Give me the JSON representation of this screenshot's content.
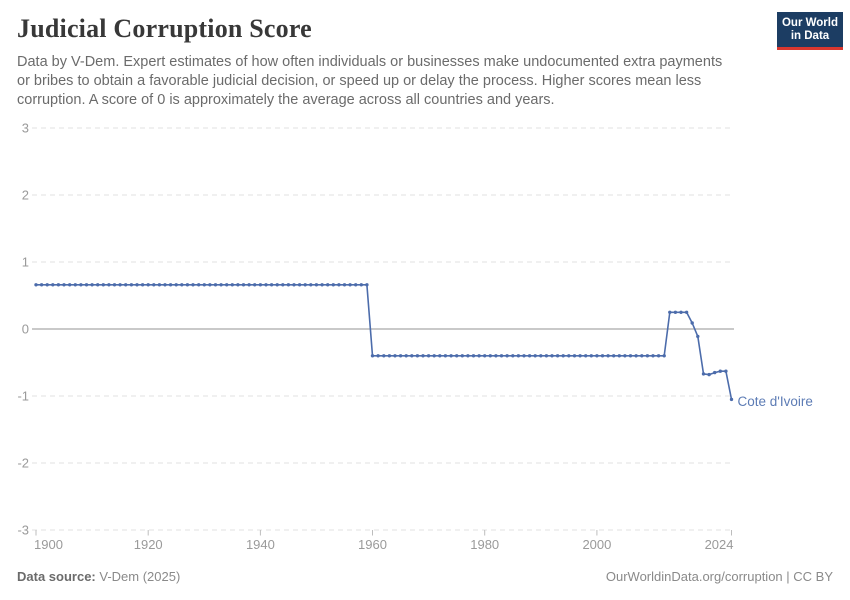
{
  "header": {
    "title": "Judicial Corruption Score",
    "subtitle_lines": [
      "Data by V-Dem. Expert estimates of how often individuals or businesses make undocumented extra payments",
      "or bribes to obtain a favorable judicial decision, or speed up or delay the process. Higher scores mean less",
      "corruption. A score of 0 is approximately the average across all countries and years."
    ]
  },
  "logo": {
    "line1": "Our World",
    "line2": "in Data",
    "bg_color": "#1c3d63",
    "accent_color": "#d9372f"
  },
  "chart_data": {
    "type": "line",
    "title": "Judicial Corruption Score",
    "xlabel": "",
    "ylabel": "",
    "xlim": [
      1900,
      2024
    ],
    "ylim": [
      -3,
      3
    ],
    "x_ticks": [
      1900,
      1920,
      1940,
      1960,
      1980,
      2000,
      2024
    ],
    "y_ticks": [
      3,
      2,
      1,
      0,
      -1,
      -2,
      -3
    ],
    "grid": "horizontal dashed gridlines, solid gray zero line",
    "legend": "inline entity label at line end",
    "series": [
      {
        "name": "Cote d'Ivoire",
        "color": "#4c6cab",
        "label_color": "#5d7cb5",
        "points": [
          [
            1900,
            0.66
          ],
          [
            1901,
            0.66
          ],
          [
            1902,
            0.66
          ],
          [
            1903,
            0.66
          ],
          [
            1904,
            0.66
          ],
          [
            1905,
            0.66
          ],
          [
            1906,
            0.66
          ],
          [
            1907,
            0.66
          ],
          [
            1908,
            0.66
          ],
          [
            1909,
            0.66
          ],
          [
            1910,
            0.66
          ],
          [
            1911,
            0.66
          ],
          [
            1912,
            0.66
          ],
          [
            1913,
            0.66
          ],
          [
            1914,
            0.66
          ],
          [
            1915,
            0.66
          ],
          [
            1916,
            0.66
          ],
          [
            1917,
            0.66
          ],
          [
            1918,
            0.66
          ],
          [
            1919,
            0.66
          ],
          [
            1920,
            0.66
          ],
          [
            1921,
            0.66
          ],
          [
            1922,
            0.66
          ],
          [
            1923,
            0.66
          ],
          [
            1924,
            0.66
          ],
          [
            1925,
            0.66
          ],
          [
            1926,
            0.66
          ],
          [
            1927,
            0.66
          ],
          [
            1928,
            0.66
          ],
          [
            1929,
            0.66
          ],
          [
            1930,
            0.66
          ],
          [
            1931,
            0.66
          ],
          [
            1932,
            0.66
          ],
          [
            1933,
            0.66
          ],
          [
            1934,
            0.66
          ],
          [
            1935,
            0.66
          ],
          [
            1936,
            0.66
          ],
          [
            1937,
            0.66
          ],
          [
            1938,
            0.66
          ],
          [
            1939,
            0.66
          ],
          [
            1940,
            0.66
          ],
          [
            1941,
            0.66
          ],
          [
            1942,
            0.66
          ],
          [
            1943,
            0.66
          ],
          [
            1944,
            0.66
          ],
          [
            1945,
            0.66
          ],
          [
            1946,
            0.66
          ],
          [
            1947,
            0.66
          ],
          [
            1948,
            0.66
          ],
          [
            1949,
            0.66
          ],
          [
            1950,
            0.66
          ],
          [
            1951,
            0.66
          ],
          [
            1952,
            0.66
          ],
          [
            1953,
            0.66
          ],
          [
            1954,
            0.66
          ],
          [
            1955,
            0.66
          ],
          [
            1956,
            0.66
          ],
          [
            1957,
            0.66
          ],
          [
            1958,
            0.66
          ],
          [
            1959,
            0.66
          ],
          [
            1960,
            -0.4
          ],
          [
            1961,
            -0.4
          ],
          [
            1962,
            -0.4
          ],
          [
            1963,
            -0.4
          ],
          [
            1964,
            -0.4
          ],
          [
            1965,
            -0.4
          ],
          [
            1966,
            -0.4
          ],
          [
            1967,
            -0.4
          ],
          [
            1968,
            -0.4
          ],
          [
            1969,
            -0.4
          ],
          [
            1970,
            -0.4
          ],
          [
            1971,
            -0.4
          ],
          [
            1972,
            -0.4
          ],
          [
            1973,
            -0.4
          ],
          [
            1974,
            -0.4
          ],
          [
            1975,
            -0.4
          ],
          [
            1976,
            -0.4
          ],
          [
            1977,
            -0.4
          ],
          [
            1978,
            -0.4
          ],
          [
            1979,
            -0.4
          ],
          [
            1980,
            -0.4
          ],
          [
            1981,
            -0.4
          ],
          [
            1982,
            -0.4
          ],
          [
            1983,
            -0.4
          ],
          [
            1984,
            -0.4
          ],
          [
            1985,
            -0.4
          ],
          [
            1986,
            -0.4
          ],
          [
            1987,
            -0.4
          ],
          [
            1988,
            -0.4
          ],
          [
            1989,
            -0.4
          ],
          [
            1990,
            -0.4
          ],
          [
            1991,
            -0.4
          ],
          [
            1992,
            -0.4
          ],
          [
            1993,
            -0.4
          ],
          [
            1994,
            -0.4
          ],
          [
            1995,
            -0.4
          ],
          [
            1996,
            -0.4
          ],
          [
            1997,
            -0.4
          ],
          [
            1998,
            -0.4
          ],
          [
            1999,
            -0.4
          ],
          [
            2000,
            -0.4
          ],
          [
            2001,
            -0.4
          ],
          [
            2002,
            -0.4
          ],
          [
            2003,
            -0.4
          ],
          [
            2004,
            -0.4
          ],
          [
            2005,
            -0.4
          ],
          [
            2006,
            -0.4
          ],
          [
            2007,
            -0.4
          ],
          [
            2008,
            -0.4
          ],
          [
            2009,
            -0.4
          ],
          [
            2010,
            -0.4
          ],
          [
            2011,
            -0.4
          ],
          [
            2012,
            -0.4
          ],
          [
            2013,
            0.25
          ],
          [
            2014,
            0.25
          ],
          [
            2015,
            0.25
          ],
          [
            2016,
            0.25
          ],
          [
            2017,
            0.09
          ],
          [
            2018,
            -0.11
          ],
          [
            2019,
            -0.67
          ],
          [
            2020,
            -0.68
          ],
          [
            2021,
            -0.65
          ],
          [
            2022,
            -0.63
          ],
          [
            2023,
            -0.63
          ],
          [
            2024,
            -1.05
          ]
        ]
      }
    ],
    "style": {
      "gridline_color": "#e2e2e2",
      "zero_line_color": "#a9a9a9",
      "tick_label_color": "#9a9a9a",
      "tick_mark_color": "#bdbdbd"
    }
  },
  "footer": {
    "source_label": "Data source:",
    "source_value": "V-Dem (2025)",
    "credit": "OurWorldinData.org/corruption | CC BY"
  }
}
